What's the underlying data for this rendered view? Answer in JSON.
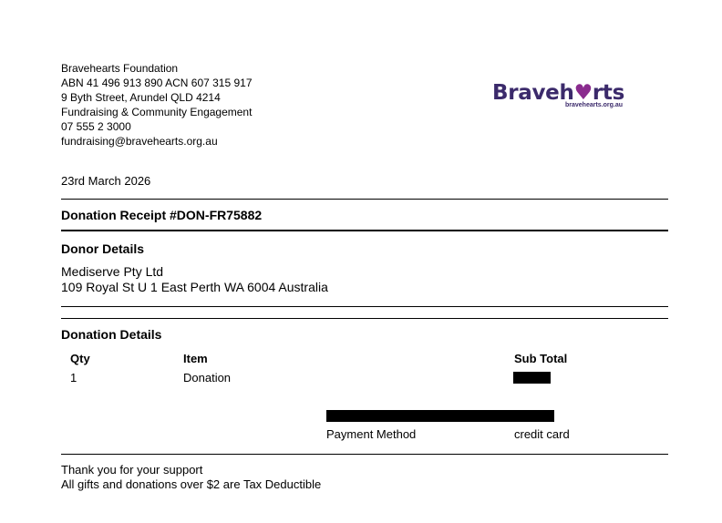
{
  "org": {
    "lines": [
      "Bravehearts Foundation",
      "ABN 41 496 913 890  ACN 607 315 917",
      "9 Byth Street, Arundel QLD 4214",
      "Fundraising & Community Engagement",
      "07 555 2 3000",
      "fundraising@bravehearts.org.au"
    ]
  },
  "logo": {
    "word_before": "Braveh",
    "heart": "♥",
    "word_after": "rts",
    "url": "bravehearts.org.au",
    "text_color": "#3b2a6b",
    "heart_color": "#8a2b8e"
  },
  "date": "23rd March 2026",
  "receipt_title": "Donation Receipt #DON-FR75882",
  "donor": {
    "heading": "Donor Details",
    "name": "Mediserve Pty Ltd",
    "address": "109 Royal St U 1 East Perth WA 6004 Australia"
  },
  "donation": {
    "heading": "Donation Details",
    "columns": {
      "qty": "Qty",
      "item": "Item",
      "subtotal": "Sub Total"
    },
    "rows": [
      {
        "qty": "1",
        "item": "Donation"
      }
    ],
    "payment_method_label": "Payment Method",
    "payment_method_value": "credit card"
  },
  "footer": {
    "line1": "Thank you for your support",
    "line2": "All gifts and donations over $2 are Tax Deductible"
  }
}
